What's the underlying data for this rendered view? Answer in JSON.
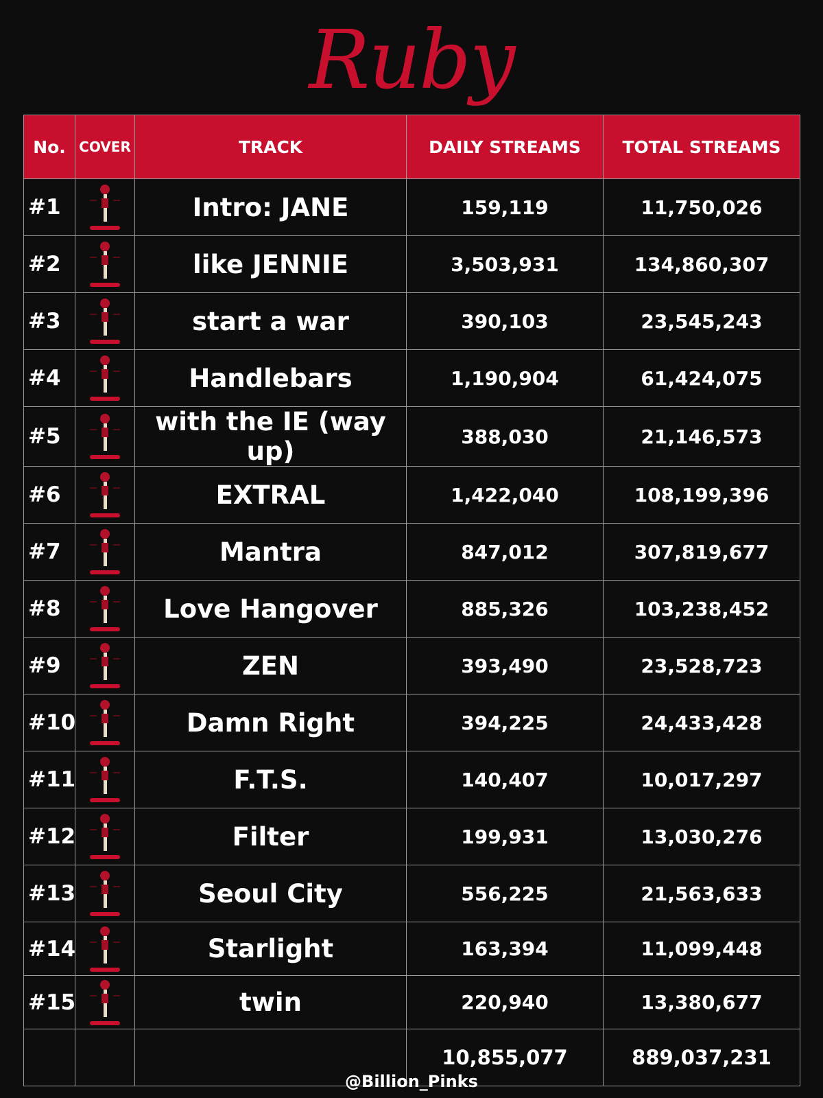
{
  "title": "Ruby",
  "headers": {
    "no": "No.",
    "cover": "COVER",
    "track": "TRACK",
    "daily": "DAILY STREAMS",
    "total": "TOTAL STREAMS"
  },
  "colors": {
    "accent": "#c8102e",
    "background": "#0d0d0d"
  },
  "rows": [
    {
      "no": "#1",
      "track": "Intro: JANE",
      "daily": "159,119",
      "total": "11,750,026"
    },
    {
      "no": "#2",
      "track": "like JENNIE",
      "daily": "3,503,931",
      "total": "134,860,307"
    },
    {
      "no": "#3",
      "track": "start a war",
      "daily": "390,103",
      "total": "23,545,243"
    },
    {
      "no": "#4",
      "track": "Handlebars",
      "daily": "1,190,904",
      "total": "61,424,075"
    },
    {
      "no": "#5",
      "track": "with the IE (way up)",
      "daily": "388,030",
      "total": "21,146,573"
    },
    {
      "no": "#6",
      "track": "EXTRAL",
      "daily": "1,422,040",
      "total": "108,199,396"
    },
    {
      "no": "#7",
      "track": "Mantra",
      "daily": "847,012",
      "total": "307,819,677"
    },
    {
      "no": "#8",
      "track": "Love Hangover",
      "daily": "885,326",
      "total": "103,238,452"
    },
    {
      "no": "#9",
      "track": "ZEN",
      "daily": "393,490",
      "total": "23,528,723"
    },
    {
      "no": "#10",
      "track": "Damn Right",
      "daily": "394,225",
      "total": "24,433,428"
    },
    {
      "no": "#11",
      "track": "F.T.S.",
      "daily": "140,407",
      "total": "10,017,297"
    },
    {
      "no": "#12",
      "track": "Filter",
      "daily": "199,931",
      "total": "13,030,276"
    },
    {
      "no": "#13",
      "track": "Seoul City",
      "daily": "556,225",
      "total": "21,563,633"
    },
    {
      "no": "#14",
      "track": "Starlight",
      "daily": "163,394",
      "total": "11,099,448"
    },
    {
      "no": "#15",
      "track": "twin",
      "daily": "220,940",
      "total": "13,380,677"
    }
  ],
  "totals": {
    "daily": "10,855,077",
    "total": "889,037,231"
  },
  "footer": "@Billion_Pinks"
}
